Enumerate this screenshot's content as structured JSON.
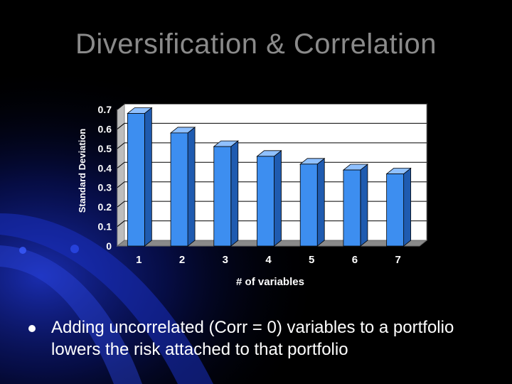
{
  "slide": {
    "title": "Diversification & Correlation",
    "bullet": "Adding uncorrelated (Corr = 0) variables to a portfolio lowers the risk attached to that portfolio"
  },
  "colors": {
    "background": "#000000",
    "title": "#8a8a8a",
    "bar_front": "#3d8ef0",
    "bar_side": "#1f5bb0",
    "bar_top": "#8fc0ff",
    "plot_wall": "#ffffff"
  },
  "chart_data": {
    "type": "bar",
    "title": "",
    "xlabel": "# of variables",
    "ylabel": "Standard Deviation",
    "categories": [
      "1",
      "2",
      "3",
      "4",
      "5",
      "6",
      "7"
    ],
    "values": [
      0.68,
      0.58,
      0.51,
      0.46,
      0.42,
      0.39,
      0.37
    ],
    "ylim": [
      0,
      0.7
    ],
    "yticks": [
      "0",
      "0.1",
      "0.2",
      "0.3",
      "0.4",
      "0.5",
      "0.6",
      "0.7"
    ],
    "grid": true,
    "legend": "none"
  }
}
